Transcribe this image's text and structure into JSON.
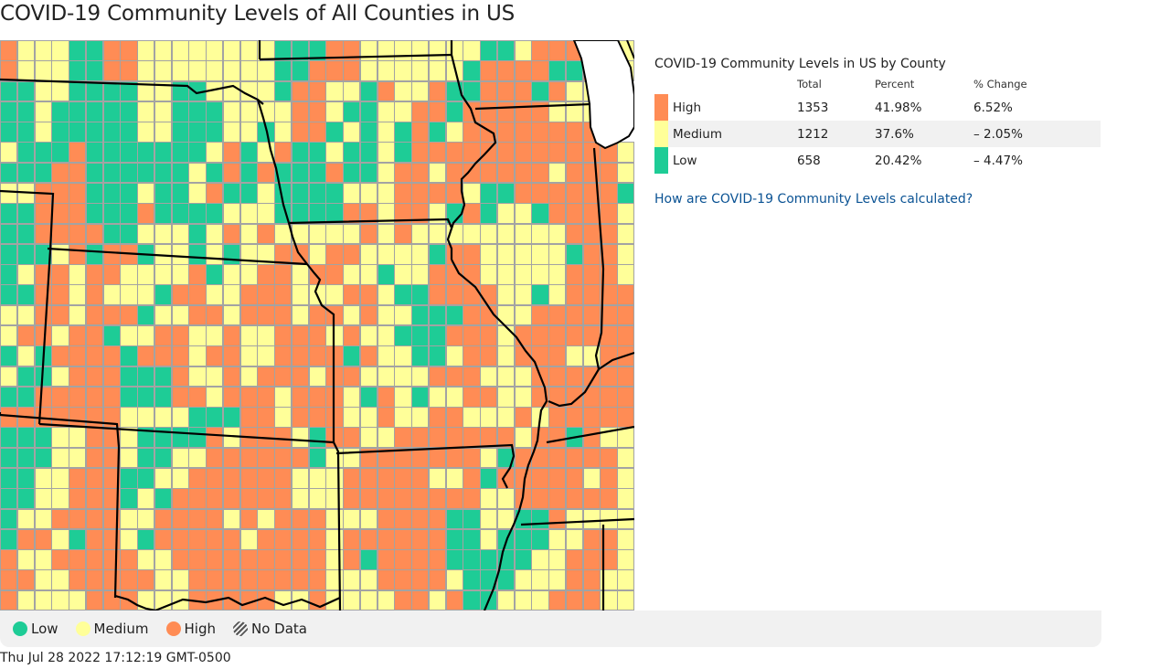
{
  "page": {
    "title": "COVID-19 Community Levels of All Counties in US",
    "timestamp": "Thu Jul 28 2022 17:12:19 GMT-0500"
  },
  "colors": {
    "low": "#1ecc96",
    "medium": "#ffff99",
    "high": "#ff8c55",
    "county_border": "#a3a3a3",
    "state_border": "#000000",
    "link": "#0b5394",
    "legend_bg": "#f1f1f1"
  },
  "summary": {
    "title": "COVID-19 Community Levels in US by County",
    "columns": [
      "",
      "Total",
      "Percent",
      "% Change"
    ],
    "rows": [
      {
        "level": "High",
        "color": "#ff8c55",
        "total": "1353",
        "percent": "41.98%",
        "change": "6.52%"
      },
      {
        "level": "Medium",
        "color": "#ffff99",
        "total": "1212",
        "percent": "37.6%",
        "change": "– 2.05%"
      },
      {
        "level": "Low",
        "color": "#1ecc96",
        "total": "658",
        "percent": "20.42%",
        "change": "– 4.47%"
      }
    ],
    "link_text": "How are COVID-19 Community Levels calculated?"
  },
  "legend": {
    "items": [
      {
        "label": "Low",
        "icon": "green-dot-icon"
      },
      {
        "label": "Medium",
        "icon": "yellow-dot-icon"
      },
      {
        "label": "High",
        "icon": "orange-dot-icon"
      },
      {
        "label": "No Data",
        "icon": "hatched-dot-icon"
      }
    ]
  },
  "map": {
    "view": "Central US (NE, KS, OK, IA, MO, AR, IL, WI, TN) county choropleth",
    "cell_rows": [
      "HYYYGGHHYYYYYYYYGGGHHYYYYYYYGGYHHHYYY",
      "HYYYGGHHYYYYYYYYGGHHHYYYYYYGHHHHGGHYY",
      "GGYYGGGGYYGGYYYYGHHYYGHYYHGGHHHGHYYH-",
      "GGYGGGGGYYGGGYYYYHHYGGYYHHGHHHHHYYYH-",
      "GGYGGGGGYYGGGYYGYHHGYGYGHGYHHHHHHHHH-",
      "YGGGHGGGGGGGYHGYHGGYGGYGHHHHHHHHHHHHY",
      "GGGHHGGGGGGYGHGHGGGHGGYHHYHHHHHHYHHHY",
      "YYHHHGGGYGGYHGGYGGGGYYYHHHHYGGHHHHHHG",
      "GGHHHGGGHGGGGYYYGGGGHHYHHYGHGYYGHHHHY",
      "GGHHHHGGYYYGYHYHYYYYYHYHYYYYYYYYYHHHY",
      "GGGYHGHHGYYGYGYYHHYHHYYYYGHHYYYYYGHHY",
      "GYHHYHHYYYYHGYYHHYHHYYGYYHHHYYYYYHHHY",
      "GGHHYHYYYGHHYYHHHYYYHHYGGHHHHYYGYHHHH",
      "YYHHYHHHGYYHHYHHHYHHYHYYGGGHHYYHHHHHH",
      "YHHYHHGYYHHYYHYYHHHYHYYGGGHHHYHHHHHHH",
      "GYGHHHHGHHHYHHYYHHHHGHYYGGYHHYHHHYYHH",
      "YGGYHHHGGGHYYHYHHHYHHYYYYHHHYYYHHHHHH",
      "GGHHHHHGGGHHYHHHYHHHYGHYGYYHHYYHHHHHH",
      "HHHHHHHYYYYGGGHHYHHHYYHYYHHYYYHYHHHHH",
      "GGGYYHHYGGGGHYHHHYGHHYYHHHHHHHYHHGHYY",
      "GGGYYHHYGGYYHHHHHHGYYHHHHHHHYGHHHHHHY",
      "GGYYHHHGGYYHHHHHHYYYHHHHHYYHGHHHHHYHY",
      "GGYYHHHGYGHHHHHHHYYYHHHHHHHHYYHHHHHHY",
      "GYYHHHHYYHHHHYHYHHHYYYHHHHGGYYGGHYYYY",
      "GHHYGHHYGHHHHHYHHHHYHHHHHHGGYGGGYYHHY",
      "HYYHHHHHYYHHHHHHHHHYHGHHHHGGGGGYYHHHY",
      "HHYYHHHHHYYHHHHHHHHYYYHHHHYGGGYYYHHYY",
      "HYYYYHHHYYYHHHHHYYHYYYYHHYHGGYYYHHHYY"
    ]
  }
}
